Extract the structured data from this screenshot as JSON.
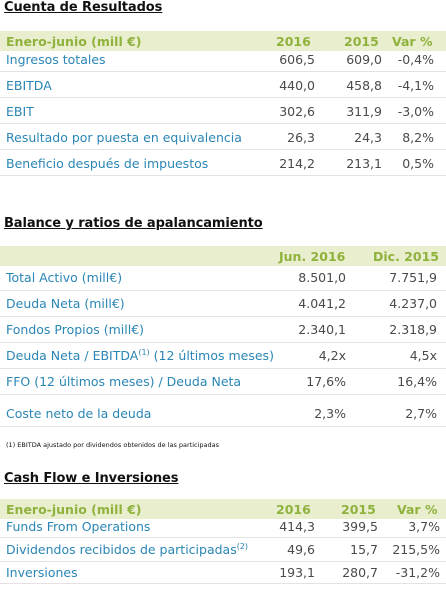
{
  "section1": {
    "title": "Cuenta de Resultados",
    "header": {
      "label": "Enero-junio (mill €)",
      "c1": "2016",
      "c2": "2015",
      "c3": "Var %"
    },
    "rows": [
      {
        "label": "Ingresos  totales",
        "c1": "606,5",
        "c2": "609,0",
        "c3": "-0,4%"
      },
      {
        "label": "EBITDA",
        "c1": "440,0",
        "c2": "458,8",
        "c3": "-4,1%"
      },
      {
        "label": "EBIT",
        "c1": "302,6",
        "c2": "311,9",
        "c3": "-3,0%"
      },
      {
        "label": "Resultado por puesta en equivalencia",
        "c1": "26,3",
        "c2": "24,3",
        "c3": "8,2%"
      },
      {
        "label": "Beneficio después de impuestos",
        "c1": "214,2",
        "c2": "213,1",
        "c3": "0,5%"
      }
    ]
  },
  "section2": {
    "title": "Balance y ratios de apalancamiento",
    "header": {
      "c1": "Jun. 2016",
      "c2": "Dic. 2015"
    },
    "rows": [
      {
        "label": "Total Activo (mill€)",
        "c1": "8.501,0",
        "c2": "7.751,9"
      },
      {
        "label": "Deuda Neta (mill€)",
        "c1": "4.041,2",
        "c2": "4.237,0"
      },
      {
        "label": "Fondos Propios (mill€)",
        "c1": "2.340,1",
        "c2": "2.318,9"
      },
      {
        "label": "Deuda Neta / EBITDA",
        "sup": "(1)",
        "note": "(12 últimos meses)",
        "c1": "4,2x",
        "c2": "4,5x"
      },
      {
        "label_pre": "FFO",
        "note": "(12 últimos meses)",
        "label_post": "/ Deuda Neta",
        "c1": "17,6%",
        "c2": "16,4%"
      },
      {
        "label": "Coste neto de la deuda",
        "c1": "2,3%",
        "c2": "2,7%"
      }
    ],
    "footnote": "(1)  EBITDA ajustado por dividendos obtenidos de las participadas"
  },
  "section3": {
    "title": "Cash Flow e Inversiones",
    "header": {
      "label": "Enero-junio (mill €)",
      "c1": "2016",
      "c2": "2015",
      "c3": "Var %"
    },
    "rows": [
      {
        "label": "Funds From Operations",
        "c1": "414,3",
        "c2": "399,5",
        "c3": "3,7%"
      },
      {
        "label": "Dividendos recibidos de participadas",
        "sup": "(2)",
        "c1": "49,6",
        "c2": "15,7",
        "c3": "215,5%"
      },
      {
        "label": "Inversiones",
        "c1": "193,1",
        "c2": "280,7",
        "c3": "-31,2%"
      }
    ]
  }
}
